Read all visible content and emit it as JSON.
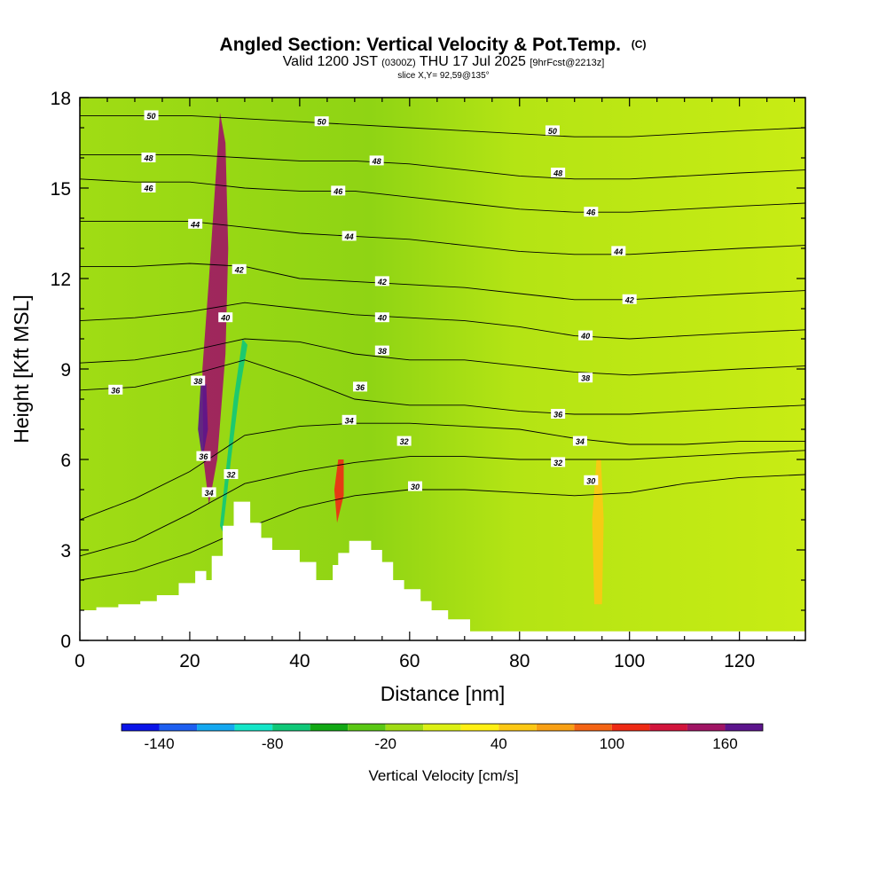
{
  "title": {
    "main": "Angled Section: Vertical Velocity & Pot.Temp.",
    "main_unit": "(C)",
    "valid_a": "Valid 1200 JST",
    "valid_zulu": "(0300Z)",
    "valid_b": "THU 17 Jul 2025",
    "valid_fcst": "[9hrFcst@2213z]",
    "slice": "slice X,Y= 92,59@135°"
  },
  "chart_data": {
    "type": "heatmap",
    "xlabel": "Distance [nm]",
    "ylabel": "Height [Kft MSL]",
    "xlim": [
      0,
      132
    ],
    "ylim": [
      0,
      18
    ],
    "x_ticks": [
      0,
      20,
      40,
      60,
      80,
      100,
      120
    ],
    "y_ticks": [
      0,
      3,
      6,
      9,
      12,
      15,
      18
    ],
    "colorbar": {
      "label": "Vertical Velocity [cm/s]",
      "min": -160,
      "max": 180,
      "step": 20,
      "tick_values": [
        -140,
        -80,
        -20,
        40,
        100,
        160
      ],
      "colors": [
        "#0a14e8",
        "#1e5ff0",
        "#14a8f0",
        "#14e6c8",
        "#10c878",
        "#12a814",
        "#5ac814",
        "#a0dc14",
        "#dcf014",
        "#fff014",
        "#fcc814",
        "#f8a014",
        "#f46414",
        "#ee2a14",
        "#d2143c",
        "#a01464",
        "#5c148c"
      ]
    },
    "terrain_profile": [
      [
        0,
        1.0
      ],
      [
        3,
        1.0
      ],
      [
        3,
        1.1
      ],
      [
        7,
        1.1
      ],
      [
        7,
        1.2
      ],
      [
        11,
        1.2
      ],
      [
        11,
        1.3
      ],
      [
        14,
        1.3
      ],
      [
        14,
        1.5
      ],
      [
        18,
        1.5
      ],
      [
        18,
        1.9
      ],
      [
        21,
        1.9
      ],
      [
        21,
        2.3
      ],
      [
        23,
        2.3
      ],
      [
        23,
        2.0
      ],
      [
        24,
        2.0
      ],
      [
        24,
        2.8
      ],
      [
        26,
        2.8
      ],
      [
        26,
        3.8
      ],
      [
        28,
        3.8
      ],
      [
        28,
        4.6
      ],
      [
        31,
        4.6
      ],
      [
        31,
        3.9
      ],
      [
        33,
        3.9
      ],
      [
        33,
        3.4
      ],
      [
        35,
        3.4
      ],
      [
        35,
        3.0
      ],
      [
        40,
        3.0
      ],
      [
        40,
        2.6
      ],
      [
        43,
        2.6
      ],
      [
        43,
        2.0
      ],
      [
        46,
        2.0
      ],
      [
        46,
        2.5
      ],
      [
        47,
        2.5
      ],
      [
        47,
        2.9
      ],
      [
        49,
        2.9
      ],
      [
        49,
        3.3
      ],
      [
        53,
        3.3
      ],
      [
        53,
        3.0
      ],
      [
        55,
        3.0
      ],
      [
        55,
        2.6
      ],
      [
        57,
        2.6
      ],
      [
        57,
        2.0
      ],
      [
        59,
        2.0
      ],
      [
        59,
        1.7
      ],
      [
        62,
        1.7
      ],
      [
        62,
        1.3
      ],
      [
        64,
        1.3
      ],
      [
        64,
        1.0
      ],
      [
        67,
        1.0
      ],
      [
        67,
        0.7
      ],
      [
        71,
        0.7
      ],
      [
        71,
        0.3
      ],
      [
        132,
        0.3
      ]
    ],
    "w_contours": [
      {
        "value": 150,
        "poly": [
          [
            25.5,
            17.5
          ],
          [
            23.5,
            12
          ],
          [
            22.3,
            9
          ],
          [
            22.5,
            6
          ],
          [
            23.5,
            4.5
          ],
          [
            25,
            6
          ],
          [
            26.5,
            9.5
          ],
          [
            27,
            13
          ],
          [
            26.5,
            16.5
          ]
        ]
      },
      {
        "value": 170,
        "poly": [
          [
            22,
            8.5
          ],
          [
            21.5,
            7
          ],
          [
            22.3,
            6
          ],
          [
            23.3,
            7
          ],
          [
            23,
            8.5
          ]
        ]
      },
      {
        "value": -70,
        "poly": [
          [
            26,
            3.6
          ],
          [
            27.5,
            6
          ],
          [
            29,
            8.2
          ],
          [
            30.5,
            9.8
          ],
          [
            29.6,
            10
          ],
          [
            28,
            8
          ],
          [
            26.5,
            5.5
          ],
          [
            25.5,
            3.8
          ]
        ]
      },
      {
        "value": 110,
        "poly": [
          [
            47,
            6
          ],
          [
            46.3,
            5
          ],
          [
            46.8,
            3.9
          ],
          [
            48,
            4.8
          ],
          [
            48,
            6
          ]
        ]
      },
      {
        "value": 50,
        "poly": [
          [
            94,
            6
          ],
          [
            93.2,
            4
          ],
          [
            93.6,
            1.2
          ],
          [
            95,
            1.2
          ],
          [
            95.3,
            4
          ],
          [
            94.8,
            6
          ]
        ]
      }
    ],
    "theta_contours": [
      {
        "label": "30",
        "value": 30,
        "x": [
          0,
          10,
          20,
          30,
          40,
          50,
          60,
          70,
          80,
          90,
          100,
          110,
          120,
          132
        ],
        "y": [
          2.0,
          2.3,
          2.9,
          3.7,
          4.4,
          4.8,
          5.0,
          5.0,
          4.9,
          4.8,
          4.9,
          5.2,
          5.4,
          5.5
        ]
      },
      {
        "label": "32",
        "value": 32,
        "x": [
          0,
          10,
          20,
          30,
          40,
          50,
          60,
          70,
          80,
          90,
          100,
          110,
          120,
          132
        ],
        "y": [
          2.8,
          3.3,
          4.2,
          5.2,
          5.6,
          5.9,
          6.1,
          6.1,
          6.0,
          6.0,
          6.0,
          6.1,
          6.2,
          6.3
        ]
      },
      {
        "label": "34",
        "value": 34,
        "x": [
          0,
          10,
          20,
          30,
          40,
          50,
          60,
          70,
          80,
          90,
          100,
          110,
          120,
          132
        ],
        "y": [
          4.0,
          4.7,
          5.6,
          6.8,
          7.1,
          7.2,
          7.2,
          7.1,
          7.0,
          6.7,
          6.5,
          6.5,
          6.6,
          6.6
        ]
      },
      {
        "label": "36",
        "value": 36,
        "x": [
          0,
          10,
          20,
          30,
          40,
          50,
          60,
          70,
          80,
          90,
          100,
          110,
          120,
          132
        ],
        "y": [
          8.3,
          8.4,
          8.8,
          9.3,
          8.7,
          8.0,
          7.8,
          7.8,
          7.6,
          7.5,
          7.5,
          7.6,
          7.7,
          7.8
        ]
      },
      {
        "label": "38",
        "value": 38,
        "x": [
          0,
          10,
          20,
          30,
          40,
          50,
          60,
          70,
          80,
          90,
          100,
          110,
          120,
          132
        ],
        "y": [
          9.2,
          9.3,
          9.6,
          10.0,
          9.9,
          9.5,
          9.3,
          9.3,
          9.1,
          8.9,
          8.8,
          8.9,
          9.0,
          9.1
        ]
      },
      {
        "label": "40",
        "value": 40,
        "x": [
          0,
          10,
          20,
          30,
          40,
          50,
          60,
          70,
          80,
          90,
          100,
          110,
          120,
          132
        ],
        "y": [
          10.6,
          10.7,
          10.9,
          11.2,
          11.0,
          10.8,
          10.7,
          10.6,
          10.4,
          10.1,
          10.0,
          10.1,
          10.2,
          10.3
        ]
      },
      {
        "label": "42",
        "value": 42,
        "x": [
          0,
          10,
          20,
          30,
          40,
          50,
          60,
          70,
          80,
          90,
          100,
          110,
          120,
          132
        ],
        "y": [
          12.4,
          12.4,
          12.5,
          12.4,
          12.0,
          11.9,
          11.8,
          11.7,
          11.5,
          11.3,
          11.3,
          11.4,
          11.5,
          11.6
        ]
      },
      {
        "label": "44",
        "value": 44,
        "x": [
          0,
          10,
          20,
          30,
          40,
          50,
          60,
          70,
          80,
          90,
          100,
          110,
          120,
          132
        ],
        "y": [
          13.9,
          13.9,
          13.9,
          13.7,
          13.5,
          13.4,
          13.3,
          13.1,
          12.9,
          12.8,
          12.8,
          12.9,
          13.0,
          13.1
        ]
      },
      {
        "label": "46",
        "value": 46,
        "x": [
          0,
          10,
          20,
          30,
          40,
          50,
          60,
          70,
          80,
          90,
          100,
          110,
          120,
          132
        ],
        "y": [
          15.3,
          15.2,
          15.2,
          15.0,
          14.9,
          14.9,
          14.7,
          14.5,
          14.3,
          14.2,
          14.2,
          14.3,
          14.4,
          14.5
        ]
      },
      {
        "label": "48",
        "value": 48,
        "x": [
          0,
          10,
          20,
          30,
          40,
          50,
          60,
          70,
          80,
          90,
          100,
          110,
          120,
          132
        ],
        "y": [
          16.1,
          16.1,
          16.1,
          16.0,
          15.9,
          15.9,
          15.8,
          15.6,
          15.4,
          15.3,
          15.3,
          15.4,
          15.5,
          15.6
        ]
      },
      {
        "label": "50",
        "value": 50,
        "x": [
          0,
          10,
          20,
          30,
          40,
          50,
          60,
          70,
          80,
          90,
          100,
          110,
          120,
          132
        ],
        "y": [
          17.4,
          17.4,
          17.4,
          17.3,
          17.2,
          17.1,
          17.0,
          16.9,
          16.8,
          16.7,
          16.7,
          16.8,
          16.9,
          17.0
        ]
      }
    ],
    "theta_labels": [
      {
        "text": "50",
        "x": 13,
        "y": 17.4
      },
      {
        "text": "48",
        "x": 12.5,
        "y": 16.0
      },
      {
        "text": "46",
        "x": 12.5,
        "y": 15.0
      },
      {
        "text": "44",
        "x": 21,
        "y": 13.8
      },
      {
        "text": "42",
        "x": 29,
        "y": 12.3
      },
      {
        "text": "40",
        "x": 26.5,
        "y": 10.7
      },
      {
        "text": "38",
        "x": 21.5,
        "y": 8.6
      },
      {
        "text": "36",
        "x": 6.5,
        "y": 8.3
      },
      {
        "text": "36",
        "x": 22.5,
        "y": 6.1
      },
      {
        "text": "34",
        "x": 23.5,
        "y": 4.9
      },
      {
        "text": "32",
        "x": 27.5,
        "y": 5.5
      },
      {
        "text": "50",
        "x": 44,
        "y": 17.2
      },
      {
        "text": "48",
        "x": 54,
        "y": 15.9
      },
      {
        "text": "46",
        "x": 47,
        "y": 14.9
      },
      {
        "text": "44",
        "x": 49,
        "y": 13.4
      },
      {
        "text": "42",
        "x": 55,
        "y": 11.9
      },
      {
        "text": "40",
        "x": 55,
        "y": 10.7
      },
      {
        "text": "38",
        "x": 55,
        "y": 9.6
      },
      {
        "text": "36",
        "x": 51,
        "y": 8.4
      },
      {
        "text": "34",
        "x": 49,
        "y": 7.3
      },
      {
        "text": "32",
        "x": 59,
        "y": 6.6
      },
      {
        "text": "30",
        "x": 61,
        "y": 5.1
      },
      {
        "text": "50",
        "x": 86,
        "y": 16.9
      },
      {
        "text": "48",
        "x": 87,
        "y": 15.5
      },
      {
        "text": "46",
        "x": 93,
        "y": 14.2
      },
      {
        "text": "44",
        "x": 98,
        "y": 12.9
      },
      {
        "text": "42",
        "x": 100,
        "y": 11.3
      },
      {
        "text": "40",
        "x": 92,
        "y": 10.1
      },
      {
        "text": "38",
        "x": 92,
        "y": 8.7
      },
      {
        "text": "36",
        "x": 87,
        "y": 7.5
      },
      {
        "text": "34",
        "x": 91,
        "y": 6.6
      },
      {
        "text": "32",
        "x": 87,
        "y": 5.9
      },
      {
        "text": "30",
        "x": 93,
        "y": 5.3
      }
    ]
  }
}
